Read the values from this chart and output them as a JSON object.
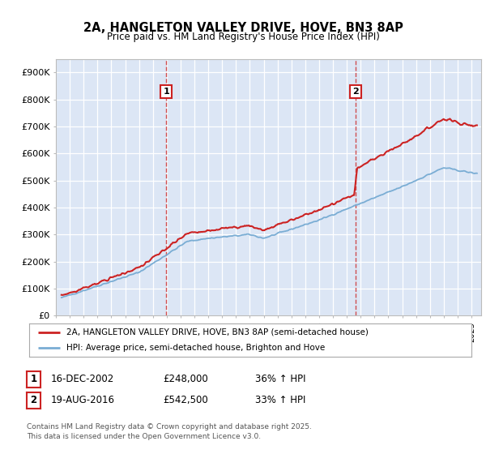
{
  "title_line1": "2A, HANGLETON VALLEY DRIVE, HOVE, BN3 8AP",
  "title_line2": "Price paid vs. HM Land Registry's House Price Index (HPI)",
  "ylim": [
    0,
    950000
  ],
  "yticks": [
    0,
    100000,
    200000,
    300000,
    400000,
    500000,
    600000,
    700000,
    800000,
    900000
  ],
  "ytick_labels": [
    "£0",
    "£100K",
    "£200K",
    "£300K",
    "£400K",
    "£500K",
    "£600K",
    "£700K",
    "£800K",
    "£900K"
  ],
  "background_color": "#dce6f5",
  "grid_color": "#ffffff",
  "hpi_color": "#7aadd4",
  "price_color": "#cc2222",
  "vline_color": "#cc3333",
  "marker1_year": 2002.96,
  "marker2_year": 2016.63,
  "legend_line1": "2A, HANGLETON VALLEY DRIVE, HOVE, BN3 8AP (semi-detached house)",
  "legend_line2": "HPI: Average price, semi-detached house, Brighton and Hove",
  "table_row1": [
    "1",
    "16-DEC-2002",
    "£248,000",
    "36% ↑ HPI"
  ],
  "table_row2": [
    "2",
    "19-AUG-2016",
    "£542,500",
    "33% ↑ HPI"
  ],
  "footnote": "Contains HM Land Registry data © Crown copyright and database right 2025.\nThis data is licensed under the Open Government Licence v3.0.",
  "start_year": 1995.3,
  "end_year": 2025.7
}
